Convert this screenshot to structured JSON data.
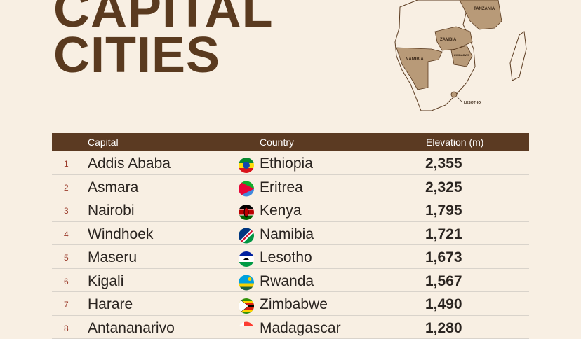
{
  "title": {
    "line1": "CAPITAL",
    "line2": "CITIES"
  },
  "map": {
    "labels": [
      "TANZANIA",
      "ZAMBIA",
      "ZIMBABWE",
      "NAMIBIA",
      "LESOTHO"
    ]
  },
  "table": {
    "header": [
      "Capital",
      "Country",
      "Elevation (m)"
    ],
    "rows": [
      [
        "1",
        "Addis Ababa",
        "Ethiopia",
        "2,355"
      ],
      [
        "2",
        "Asmara",
        "Eritrea",
        "2,325"
      ],
      [
        "3",
        "Nairobi",
        "Kenya",
        "1,795"
      ],
      [
        "4",
        "Windhoek",
        "Namibia",
        "1,721"
      ],
      [
        "5",
        "Maseru",
        "Lesotho",
        "1,673"
      ],
      [
        "6",
        "Kigali",
        "Rwanda",
        "1,567"
      ],
      [
        "7",
        "Harare",
        "Zimbabwe",
        "1,490"
      ],
      [
        "8",
        "Antananarivo",
        "Madagascar",
        "1,280"
      ]
    ]
  }
}
